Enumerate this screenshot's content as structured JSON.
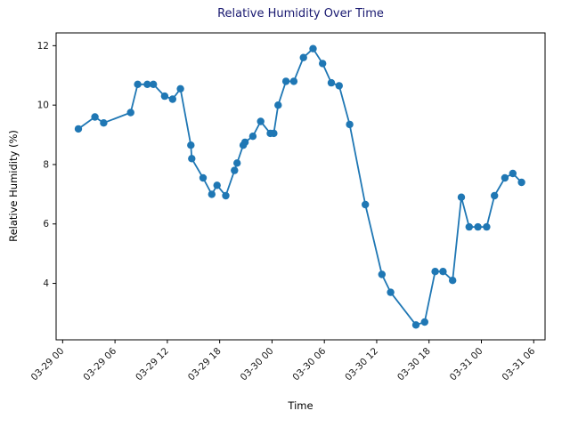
{
  "chart_data": {
    "type": "line",
    "title": "Relative Humidity Over Time",
    "xlabel": "Time",
    "ylabel": "Relative Humidity (%)",
    "title_color": "#191970",
    "series_color": "#1f77b4",
    "marker": "circle",
    "legend": "none",
    "grid": false,
    "x_hours": [
      1.8,
      3.7,
      4.7,
      7.8,
      8.6,
      9.7,
      10.4,
      11.7,
      12.6,
      13.5,
      14.7,
      14.8,
      16.1,
      17.1,
      17.7,
      18.7,
      19.7,
      20.0,
      20.7,
      20.9,
      21.8,
      22.7,
      23.8,
      24.2,
      24.7,
      25.6,
      26.5,
      27.6,
      28.7,
      29.8,
      30.8,
      31.7,
      32.9,
      34.7,
      36.6,
      37.6,
      40.5,
      41.5,
      42.7,
      43.6,
      44.7,
      45.7,
      46.6,
      47.6,
      48.6,
      49.5,
      50.7,
      51.6,
      52.6
    ],
    "values": [
      9.2,
      9.6,
      9.4,
      9.75,
      10.7,
      10.7,
      10.7,
      10.3,
      10.2,
      10.55,
      8.65,
      8.2,
      7.55,
      7.0,
      7.3,
      6.95,
      7.8,
      8.05,
      8.65,
      8.75,
      8.95,
      9.45,
      9.05,
      9.05,
      10.0,
      10.8,
      10.8,
      11.6,
      11.9,
      11.4,
      10.75,
      10.65,
      9.35,
      6.65,
      4.3,
      3.7,
      2.6,
      2.7,
      4.4,
      4.4,
      4.1,
      6.9,
      5.9,
      5.9,
      5.9,
      6.95,
      7.55,
      7.7,
      7.4
    ],
    "x_ticks_hours": [
      0,
      6,
      12,
      18,
      24,
      30,
      36,
      42,
      48,
      54
    ],
    "x_tick_labels": [
      "03-29 00",
      "03-29 06",
      "03-29 12",
      "03-29 18",
      "03-30 00",
      "03-30 06",
      "03-30 12",
      "03-30 18",
      "03-31 00",
      "03-31 06"
    ],
    "x_tick_rotation": 45,
    "y_ticks": [
      4,
      6,
      8,
      10,
      12
    ],
    "xlim_hours": [
      -0.75,
      55.3
    ],
    "ylim": [
      2.1,
      12.43
    ]
  }
}
